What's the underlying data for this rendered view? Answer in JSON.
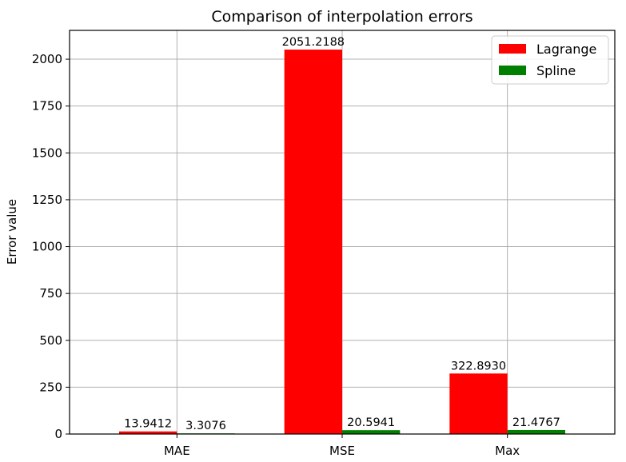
{
  "chart_data": {
    "type": "bar",
    "title": "Comparison of interpolation errors",
    "xlabel": "",
    "ylabel": "Error value",
    "categories": [
      "MAE",
      "MSE",
      "Max"
    ],
    "series": [
      {
        "name": "Lagrange",
        "color": "#ff0000",
        "values": [
          13.9412,
          2051.2188,
          322.893
        ],
        "labels": [
          "13.9412",
          "2051.2188",
          "322.8930"
        ]
      },
      {
        "name": "Spline",
        "color": "#008000",
        "values": [
          3.3076,
          20.5941,
          21.4767
        ],
        "labels": [
          "3.3076",
          "20.5941",
          "21.4767"
        ]
      }
    ],
    "ylim": [
      0,
      2153.8
    ],
    "yticks": [
      0,
      250,
      500,
      750,
      1000,
      1250,
      1500,
      1750,
      2000
    ],
    "grid": true,
    "legend_position": "top-right"
  }
}
